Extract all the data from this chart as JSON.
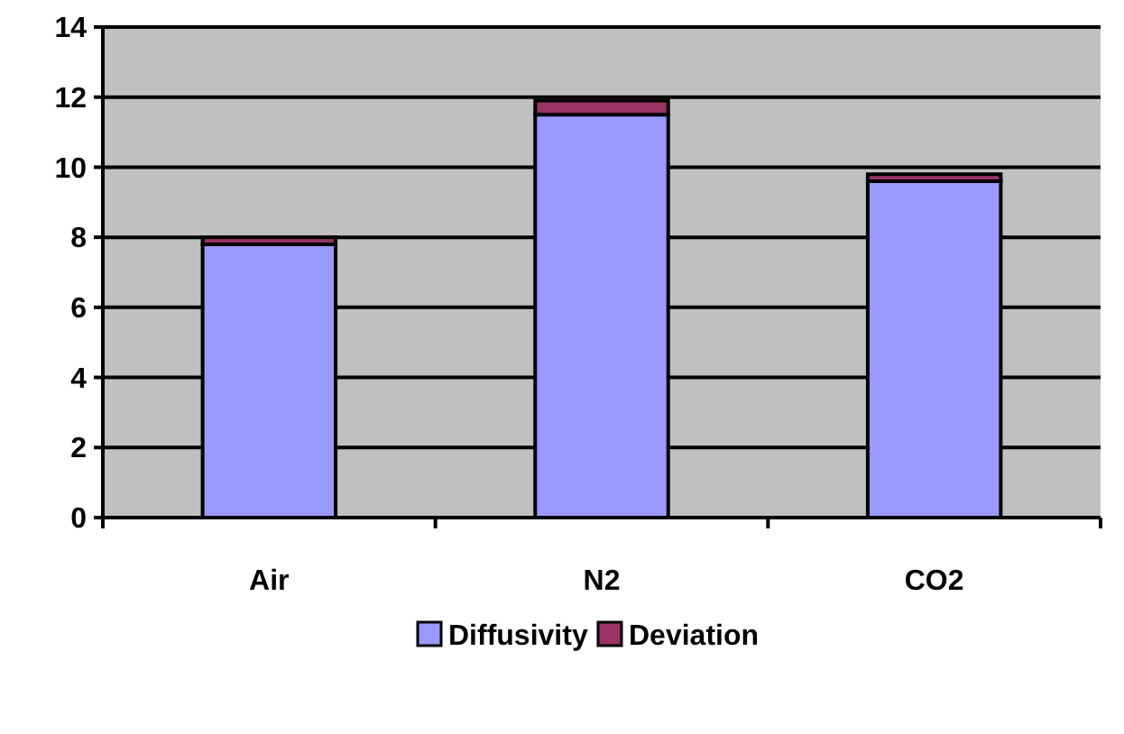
{
  "chart_data": {
    "type": "bar",
    "categories": [
      "Air",
      "N2",
      "CO2"
    ],
    "stacked": true,
    "series": [
      {
        "name": "Diffusivity",
        "color": "#9999ff",
        "values": [
          7.8,
          11.5,
          9.6
        ]
      },
      {
        "name": "Deviation",
        "color": "#993366",
        "values": [
          0.2,
          0.4,
          0.2
        ]
      }
    ],
    "ylim": [
      0,
      14
    ],
    "yticks": [
      0,
      2,
      4,
      6,
      8,
      10,
      12,
      14
    ],
    "grid": "y",
    "legend": "bottom"
  }
}
